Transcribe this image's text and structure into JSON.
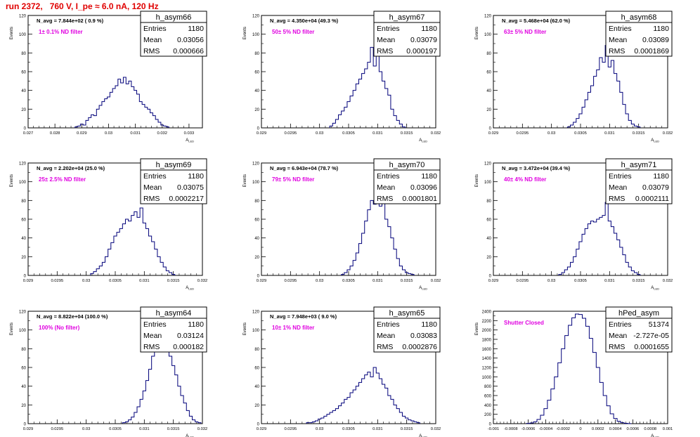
{
  "title": "run 2372,   760 V, I_pe ≈ 6.0 nA, 120 Hz",
  "colors": {
    "title": "#e00000",
    "histogram": "#00007a",
    "annotation": "#e000e0",
    "frame": "#000000"
  },
  "y_axis_label": "Events",
  "x_axis_label": "A",
  "x_axis_label_sub": "LED",
  "stat_labels": {
    "entries": "Entries",
    "mean": "Mean",
    "rms": "RMS"
  },
  "chart_data": [
    {
      "type": "histogram",
      "name": "h_asym66",
      "stats": {
        "entries": "1180",
        "mean": "0.03056",
        "rms": "0.000666"
      },
      "navg": "N_avg = 7.844e+02 ( 0.9 %)",
      "filter": "1± 0.1% ND filter",
      "xlim": [
        0.027,
        0.0335
      ],
      "ylim": [
        0,
        120
      ],
      "xticks": [
        0.027,
        0.028,
        0.029,
        0.03,
        0.031,
        0.032,
        0.033
      ],
      "xtick_labels": [
        "0.027",
        "0.028",
        "0.029",
        "0.03",
        "0.031",
        "0.032",
        "0.033"
      ],
      "yticks": [
        0,
        20,
        40,
        60,
        80,
        100,
        120
      ],
      "ytick_labels": [
        "0",
        "20",
        "40",
        "60",
        "80",
        "100",
        "120"
      ],
      "x": [
        0.0288,
        0.0289,
        0.029,
        0.0291,
        0.0292,
        0.0293,
        0.0294,
        0.0295,
        0.0296,
        0.0297,
        0.0298,
        0.0299,
        0.03,
        0.0301,
        0.0302,
        0.0303,
        0.0304,
        0.0305,
        0.0306,
        0.0307,
        0.0308,
        0.0309,
        0.031,
        0.0311,
        0.0312,
        0.0313,
        0.0314,
        0.0315,
        0.0316,
        0.0317,
        0.0318,
        0.0319,
        0.032,
        0.0321,
        0.0322
      ],
      "values": [
        1,
        2,
        4,
        3,
        8,
        11,
        14,
        13,
        20,
        24,
        28,
        31,
        33,
        38,
        42,
        45,
        52,
        48,
        54,
        47,
        50,
        44,
        40,
        36,
        28,
        25,
        22,
        20,
        16,
        13,
        9,
        6,
        3,
        2,
        1
      ]
    },
    {
      "type": "histogram",
      "name": "h_asym67",
      "stats": {
        "entries": "1180",
        "mean": "0.03079",
        "rms": "0.000197"
      },
      "navg": "N_avg = 4.350e+04 (49.3 %)",
      "filter": "50± 5% ND filter",
      "xlim": [
        0.029,
        0.032
      ],
      "ylim": [
        0,
        120
      ],
      "xticks": [
        0.029,
        0.0295,
        0.03,
        0.0305,
        0.031,
        0.0315,
        0.032
      ],
      "xtick_labels": [
        "0.029",
        "0.0295",
        "0.03",
        "0.0305",
        "0.031",
        "0.0315",
        "0.032"
      ],
      "yticks": [
        0,
        20,
        40,
        60,
        80,
        100,
        120
      ],
      "ytick_labels": [
        "0",
        "20",
        "40",
        "60",
        "80",
        "100",
        "120"
      ],
      "x": [
        0.0302,
        0.03025,
        0.0303,
        0.03035,
        0.0304,
        0.03045,
        0.0305,
        0.03055,
        0.0306,
        0.03065,
        0.0307,
        0.03075,
        0.0308,
        0.03085,
        0.0309,
        0.03095,
        0.031,
        0.03105,
        0.0311,
        0.03115,
        0.0312,
        0.03125,
        0.0313,
        0.03135,
        0.0314,
        0.03145
      ],
      "values": [
        2,
        5,
        9,
        14,
        18,
        22,
        28,
        34,
        40,
        47,
        52,
        58,
        63,
        70,
        86,
        66,
        78,
        60,
        50,
        42,
        35,
        20,
        13,
        8,
        4,
        1
      ]
    },
    {
      "type": "histogram",
      "name": "h_asym68",
      "stats": {
        "entries": "1180",
        "mean": "0.03089",
        "rms": "0.0001869"
      },
      "navg": "N_avg = 5.468e+04 (62.0 %)",
      "filter": "63± 5% ND filter",
      "xlim": [
        0.029,
        0.032
      ],
      "ylim": [
        0,
        120
      ],
      "xticks": [
        0.029,
        0.0295,
        0.03,
        0.0305,
        0.031,
        0.0315,
        0.032
      ],
      "xtick_labels": [
        "0.029",
        "0.0295",
        "0.03",
        "0.0305",
        "0.031",
        "0.0315",
        "0.032"
      ],
      "yticks": [
        0,
        20,
        40,
        60,
        80,
        100,
        120
      ],
      "ytick_labels": [
        "0",
        "20",
        "40",
        "60",
        "80",
        "100",
        "120"
      ],
      "x": [
        0.0303,
        0.03035,
        0.0304,
        0.03045,
        0.0305,
        0.03055,
        0.0306,
        0.03065,
        0.0307,
        0.03075,
        0.0308,
        0.03085,
        0.0309,
        0.03095,
        0.031,
        0.03105,
        0.0311,
        0.03115,
        0.0312,
        0.03125,
        0.0313,
        0.03135,
        0.0314,
        0.03145,
        0.0315
      ],
      "values": [
        1,
        3,
        6,
        10,
        15,
        22,
        30,
        38,
        45,
        55,
        62,
        75,
        70,
        88,
        65,
        72,
        58,
        50,
        38,
        25,
        15,
        8,
        4,
        2,
        1
      ]
    },
    {
      "type": "histogram",
      "name": "h_asym69",
      "stats": {
        "entries": "1180",
        "mean": "0.03075",
        "rms": "0.0002217"
      },
      "navg": "N_avg = 2.202e+04 (25.0 %)",
      "filter": "25± 2.5% ND filter",
      "xlim": [
        0.029,
        0.032
      ],
      "ylim": [
        0,
        120
      ],
      "xticks": [
        0.029,
        0.0295,
        0.03,
        0.0305,
        0.031,
        0.0315,
        0.032
      ],
      "xtick_labels": [
        "0.029",
        "0.0295",
        "0.03",
        "0.0305",
        "0.031",
        "0.0315",
        "0.032"
      ],
      "yticks": [
        0,
        20,
        40,
        60,
        80,
        100,
        120
      ],
      "ytick_labels": [
        "0",
        "20",
        "40",
        "60",
        "80",
        "100",
        "120"
      ],
      "x": [
        0.0301,
        0.03015,
        0.0302,
        0.03025,
        0.0303,
        0.03035,
        0.0304,
        0.03045,
        0.0305,
        0.03055,
        0.0306,
        0.03065,
        0.0307,
        0.03075,
        0.0308,
        0.03085,
        0.0309,
        0.03095,
        0.031,
        0.03105,
        0.0311,
        0.03115,
        0.0312,
        0.03125,
        0.0313,
        0.03135,
        0.0314,
        0.03145,
        0.0315
      ],
      "values": [
        2,
        4,
        7,
        10,
        14,
        20,
        28,
        35,
        42,
        46,
        50,
        55,
        60,
        58,
        64,
        68,
        62,
        72,
        56,
        50,
        42,
        36,
        28,
        20,
        14,
        9,
        5,
        3,
        1
      ]
    },
    {
      "type": "histogram",
      "name": "h_asym70",
      "stats": {
        "entries": "1180",
        "mean": "0.03096",
        "rms": "0.0001801"
      },
      "navg": "N_avg = 6.943e+04 (78.7 %)",
      "filter": "79± 5% ND filter",
      "xlim": [
        0.029,
        0.032
      ],
      "ylim": [
        0,
        120
      ],
      "xticks": [
        0.029,
        0.0295,
        0.03,
        0.0305,
        0.031,
        0.0315,
        0.032
      ],
      "xtick_labels": [
        "0.029",
        "0.0295",
        "0.03",
        "0.0305",
        "0.031",
        "0.0315",
        "0.032"
      ],
      "yticks": [
        0,
        20,
        40,
        60,
        80,
        100,
        120
      ],
      "ytick_labels": [
        "0",
        "20",
        "40",
        "60",
        "80",
        "100",
        "120"
      ],
      "x": [
        0.0304,
        0.03045,
        0.0305,
        0.03055,
        0.0306,
        0.03065,
        0.0307,
        0.03075,
        0.0308,
        0.03085,
        0.0309,
        0.03095,
        0.031,
        0.03105,
        0.0311,
        0.03115,
        0.0312,
        0.03125,
        0.0313,
        0.03135,
        0.0314,
        0.03145,
        0.0315,
        0.03155,
        0.0316
      ],
      "values": [
        1,
        3,
        6,
        10,
        16,
        24,
        34,
        45,
        58,
        70,
        80,
        76,
        88,
        74,
        78,
        60,
        52,
        40,
        28,
        18,
        10,
        6,
        3,
        2,
        1
      ]
    },
    {
      "type": "histogram",
      "name": "h_asym71",
      "stats": {
        "entries": "1180",
        "mean": "0.03079",
        "rms": "0.0002111"
      },
      "navg": "N_avg = 3.472e+04 (39.4 %)",
      "filter": "40± 4% ND filter",
      "xlim": [
        0.029,
        0.032
      ],
      "ylim": [
        0,
        120
      ],
      "xticks": [
        0.029,
        0.0295,
        0.03,
        0.0305,
        0.031,
        0.0315,
        0.032
      ],
      "xtick_labels": [
        "0.029",
        "0.0295",
        "0.03",
        "0.0305",
        "0.031",
        "0.0315",
        "0.032"
      ],
      "yticks": [
        0,
        20,
        40,
        60,
        80,
        100,
        120
      ],
      "ytick_labels": [
        "0",
        "20",
        "40",
        "60",
        "80",
        "100",
        "120"
      ],
      "x": [
        0.03015,
        0.0302,
        0.03025,
        0.0303,
        0.03035,
        0.0304,
        0.03045,
        0.0305,
        0.03055,
        0.0306,
        0.03065,
        0.0307,
        0.03075,
        0.0308,
        0.03085,
        0.0309,
        0.03095,
        0.031,
        0.03105,
        0.0311,
        0.03115,
        0.0312,
        0.03125,
        0.0313,
        0.03135,
        0.0314,
        0.03145,
        0.0315
      ],
      "values": [
        1,
        3,
        6,
        9,
        14,
        20,
        28,
        36,
        44,
        50,
        55,
        58,
        57,
        60,
        62,
        64,
        78,
        58,
        52,
        45,
        38,
        30,
        22,
        14,
        9,
        5,
        3,
        1
      ]
    },
    {
      "type": "histogram",
      "name": "h_asym64",
      "stats": {
        "entries": "1180",
        "mean": "0.03124",
        "rms": "0.000182"
      },
      "navg": "N_avg = 8.822e+04 (100.0 %)",
      "filter": "100% (No filter)",
      "xlim": [
        0.029,
        0.032
      ],
      "ylim": [
        0,
        120
      ],
      "xticks": [
        0.029,
        0.0295,
        0.03,
        0.0305,
        0.031,
        0.0315,
        0.032
      ],
      "xtick_labels": [
        "0.029",
        "0.0295",
        "0.03",
        "0.0305",
        "0.031",
        "0.0315",
        "0.032"
      ],
      "yticks": [
        0,
        20,
        40,
        60,
        80,
        100,
        120
      ],
      "ytick_labels": [
        "0",
        "20",
        "40",
        "60",
        "80",
        "100",
        "120"
      ],
      "x": [
        0.03065,
        0.0307,
        0.03075,
        0.0308,
        0.03085,
        0.0309,
        0.03095,
        0.031,
        0.03105,
        0.0311,
        0.03115,
        0.0312,
        0.03125,
        0.0313,
        0.03135,
        0.0314,
        0.03145,
        0.0315,
        0.03155,
        0.0316,
        0.03165,
        0.0317,
        0.03175,
        0.0318,
        0.03185,
        0.0319,
        0.03195
      ],
      "values": [
        1,
        2,
        4,
        7,
        12,
        18,
        26,
        35,
        46,
        58,
        72,
        82,
        92,
        86,
        95,
        78,
        72,
        62,
        52,
        40,
        30,
        22,
        14,
        8,
        4,
        2,
        1
      ]
    },
    {
      "type": "histogram",
      "name": "h_asym65",
      "stats": {
        "entries": "1180",
        "mean": "0.03083",
        "rms": "0.0002876"
      },
      "navg": "N_avg = 7.948e+03 ( 9.0 %)",
      "filter": "10± 1% ND filter",
      "xlim": [
        0.029,
        0.032
      ],
      "ylim": [
        0,
        120
      ],
      "xticks": [
        0.029,
        0.0295,
        0.03,
        0.0305,
        0.031,
        0.0315,
        0.032
      ],
      "xtick_labels": [
        "0.029",
        "0.0295",
        "0.03",
        "0.0305",
        "0.031",
        "0.0315",
        "0.032"
      ],
      "yticks": [
        0,
        20,
        40,
        60,
        80,
        100,
        120
      ],
      "ytick_labels": [
        "0",
        "20",
        "40",
        "60",
        "80",
        "100",
        "120"
      ],
      "x": [
        0.0298,
        0.02985,
        0.0299,
        0.02995,
        0.03,
        0.03005,
        0.0301,
        0.03015,
        0.0302,
        0.03025,
        0.0303,
        0.03035,
        0.0304,
        0.03045,
        0.0305,
        0.03055,
        0.0306,
        0.03065,
        0.0307,
        0.03075,
        0.0308,
        0.03085,
        0.0309,
        0.03095,
        0.031,
        0.03105,
        0.0311,
        0.03115,
        0.0312,
        0.03125,
        0.0313,
        0.03135,
        0.0314,
        0.03145,
        0.0315,
        0.03155,
        0.0316,
        0.03165,
        0.0317
      ],
      "values": [
        1,
        1,
        2,
        3,
        5,
        6,
        8,
        10,
        12,
        14,
        16,
        19,
        22,
        26,
        28,
        33,
        36,
        40,
        44,
        48,
        52,
        55,
        50,
        60,
        54,
        48,
        42,
        38,
        30,
        26,
        20,
        16,
        12,
        8,
        6,
        4,
        3,
        2,
        1
      ]
    },
    {
      "type": "histogram",
      "name": "hPed_asym",
      "stats": {
        "entries": "51374",
        "mean": "-2.727e-05",
        "rms": "0.0001655"
      },
      "navg": "",
      "filter": "Shutter Closed",
      "xlim": [
        -0.001,
        0.001
      ],
      "ylim": [
        0,
        2400
      ],
      "xticks": [
        -0.001,
        -0.0008,
        -0.0006,
        -0.0004,
        -0.0002,
        0,
        0.0002,
        0.0004,
        0.0006,
        0.0008,
        0.001
      ],
      "xtick_labels": [
        "-0.001",
        "-0.0008",
        "-0.0006",
        "-0.0004",
        "-0.0002",
        "0",
        "0.0002",
        "0.0004",
        "0.0006",
        "0.0008",
        "0.001"
      ],
      "yticks": [
        0,
        200,
        400,
        600,
        800,
        1000,
        1200,
        1400,
        1600,
        1800,
        2000,
        2200,
        2400
      ],
      "ytick_labels": [
        "0",
        "200",
        "400",
        "600",
        "800",
        "1000",
        "1200",
        "1400",
        "1600",
        "1800",
        "2000",
        "2200",
        "2400"
      ],
      "x": [
        -0.0006,
        -0.00056,
        -0.00052,
        -0.00048,
        -0.00044,
        -0.0004,
        -0.00036,
        -0.00032,
        -0.00028,
        -0.00024,
        -0.0002,
        -0.00016,
        -0.00012,
        -8e-05,
        -4e-05,
        0.0,
        4e-05,
        8e-05,
        0.00012,
        0.00016,
        0.0002,
        0.00024,
        0.00028,
        0.00032,
        0.00036,
        0.0004,
        0.00044,
        0.00048,
        0.00052,
        0.00056
      ],
      "values": [
        5,
        15,
        40,
        90,
        180,
        320,
        500,
        740,
        1000,
        1300,
        1600,
        1880,
        2100,
        2260,
        2340,
        2330,
        2250,
        2080,
        1820,
        1520,
        1200,
        880,
        600,
        380,
        210,
        110,
        50,
        20,
        8,
        2
      ]
    }
  ]
}
